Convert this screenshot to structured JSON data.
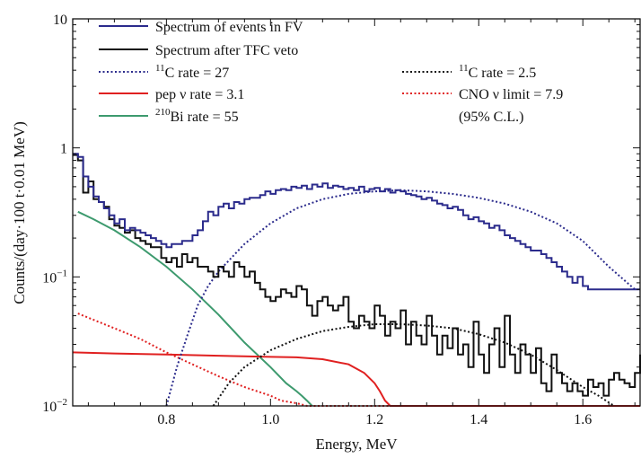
{
  "chart_data": {
    "type": "line",
    "xlabel": "Energy, MeV",
    "ylabel": "Counts/(day·100 t·0.01 MeV)",
    "xlim": [
      0.62,
      1.71
    ],
    "ylim": [
      0.01,
      10
    ],
    "yscale": "log",
    "x_ticks": [
      {
        "value": 0.8,
        "label": "0.8"
      },
      {
        "value": 1.0,
        "label": "1.0"
      },
      {
        "value": 1.2,
        "label": "1.2"
      },
      {
        "value": 1.4,
        "label": "1.4"
      },
      {
        "value": 1.6,
        "label": "1.6"
      }
    ],
    "y_ticks": [
      {
        "value": 10,
        "base": "10",
        "exp": ""
      },
      {
        "value": 1,
        "base": "1",
        "exp": ""
      },
      {
        "value": 0.1,
        "base": "10",
        "exp": "−1"
      },
      {
        "value": 0.01,
        "base": "10",
        "exp": "−2"
      }
    ],
    "legend": [
      {
        "pre": "Spectrum of events in FV",
        "sup": "",
        "post": ""
      },
      {
        "pre": "Spectrum after TFC veto",
        "sup": "",
        "post": ""
      },
      {
        "pre": "",
        "sup": "11",
        "post": "C rate = 27"
      },
      {
        "pre": "pep ν rate = 3.1",
        "sup": "",
        "post": ""
      },
      {
        "pre": "",
        "sup": "210",
        "post": "Bi rate = 55"
      },
      {
        "pre": "",
        "sup": "11",
        "post": "C rate = 2.5"
      },
      {
        "pre": "CNO ν limit = 7.9",
        "sup": "",
        "post": ""
      },
      {
        "pre": "(95% C.L.)",
        "sup": "",
        "post": ""
      }
    ],
    "series": [
      {
        "key": "fv",
        "color": "#2b2b8c",
        "style": "step",
        "bin_start": 0.62,
        "bin_width": 0.01,
        "values": [
          0.9,
          0.85,
          0.6,
          0.5,
          0.42,
          0.38,
          0.34,
          0.3,
          0.26,
          0.28,
          0.23,
          0.24,
          0.23,
          0.22,
          0.21,
          0.2,
          0.19,
          0.18,
          0.17,
          0.18,
          0.18,
          0.19,
          0.19,
          0.21,
          0.23,
          0.27,
          0.32,
          0.3,
          0.35,
          0.37,
          0.34,
          0.38,
          0.37,
          0.4,
          0.41,
          0.41,
          0.43,
          0.46,
          0.44,
          0.47,
          0.48,
          0.47,
          0.5,
          0.49,
          0.51,
          0.48,
          0.52,
          0.5,
          0.53,
          0.49,
          0.51,
          0.5,
          0.48,
          0.49,
          0.47,
          0.5,
          0.46,
          0.48,
          0.49,
          0.46,
          0.48,
          0.45,
          0.47,
          0.46,
          0.44,
          0.43,
          0.42,
          0.4,
          0.41,
          0.39,
          0.37,
          0.36,
          0.34,
          0.35,
          0.33,
          0.3,
          0.28,
          0.29,
          0.27,
          0.26,
          0.24,
          0.25,
          0.23,
          0.21,
          0.2,
          0.19,
          0.18,
          0.17,
          0.16,
          0.16,
          0.15,
          0.14,
          0.13,
          0.12,
          0.11,
          0.1,
          0.09,
          0.1,
          0.085,
          0.08,
          0.08,
          0.08,
          0.08,
          0.08,
          0.08,
          0.08,
          0.08,
          0.08,
          0.08,
          0.08
        ]
      },
      {
        "key": "tfc",
        "color": "#111111",
        "style": "step",
        "bin_start": 0.62,
        "bin_width": 0.01,
        "values": [
          0.88,
          0.8,
          0.45,
          0.55,
          0.4,
          0.38,
          0.35,
          0.28,
          0.25,
          0.24,
          0.22,
          0.23,
          0.2,
          0.19,
          0.18,
          0.17,
          0.17,
          0.14,
          0.13,
          0.14,
          0.12,
          0.15,
          0.13,
          0.14,
          0.12,
          0.12,
          0.11,
          0.1,
          0.12,
          0.11,
          0.1,
          0.13,
          0.12,
          0.1,
          0.11,
          0.09,
          0.08,
          0.07,
          0.065,
          0.07,
          0.08,
          0.075,
          0.07,
          0.085,
          0.08,
          0.06,
          0.05,
          0.065,
          0.07,
          0.06,
          0.055,
          0.06,
          0.07,
          0.045,
          0.04,
          0.05,
          0.045,
          0.04,
          0.06,
          0.05,
          0.035,
          0.045,
          0.04,
          0.055,
          0.03,
          0.045,
          0.035,
          0.03,
          0.05,
          0.035,
          0.025,
          0.035,
          0.028,
          0.04,
          0.025,
          0.03,
          0.02,
          0.045,
          0.025,
          0.018,
          0.03,
          0.04,
          0.02,
          0.05,
          0.025,
          0.018,
          0.03,
          0.025,
          0.018,
          0.028,
          0.015,
          0.013,
          0.025,
          0.018,
          0.015,
          0.013,
          0.015,
          0.013,
          0.012,
          0.016,
          0.014,
          0.015,
          0.012,
          0.016,
          0.018,
          0.016,
          0.015,
          0.014,
          0.018,
          0.025
        ]
      },
      {
        "key": "c11_fv",
        "color": "#2b2b8c",
        "style": "dotted",
        "x": [
          0.8,
          0.82,
          0.84,
          0.86,
          0.88,
          0.9,
          0.95,
          1.0,
          1.05,
          1.1,
          1.15,
          1.2,
          1.25,
          1.3,
          1.35,
          1.4,
          1.45,
          1.5,
          1.55,
          1.6,
          1.65,
          1.7
        ],
        "y": [
          0.01,
          0.02,
          0.035,
          0.06,
          0.085,
          0.11,
          0.18,
          0.26,
          0.34,
          0.4,
          0.44,
          0.46,
          0.47,
          0.46,
          0.44,
          0.41,
          0.37,
          0.32,
          0.26,
          0.19,
          0.12,
          0.08
        ]
      },
      {
        "key": "c11_tfc",
        "color": "#111111",
        "style": "dotted",
        "x": [
          0.89,
          0.92,
          0.95,
          1.0,
          1.05,
          1.1,
          1.15,
          1.2,
          1.25,
          1.3,
          1.35,
          1.4,
          1.45,
          1.5,
          1.55,
          1.6,
          1.63,
          1.66
        ],
        "y": [
          0.01,
          0.015,
          0.02,
          0.027,
          0.033,
          0.038,
          0.041,
          0.043,
          0.043,
          0.042,
          0.04,
          0.036,
          0.031,
          0.025,
          0.019,
          0.014,
          0.012,
          0.01
        ]
      },
      {
        "key": "pep",
        "color": "#e02020",
        "style": "solid",
        "x": [
          0.62,
          0.7,
          0.8,
          0.9,
          1.0,
          1.05,
          1.1,
          1.15,
          1.18,
          1.2,
          1.21,
          1.22,
          1.23,
          1.71
        ],
        "y": [
          0.026,
          0.0255,
          0.025,
          0.0245,
          0.024,
          0.0238,
          0.023,
          0.021,
          0.018,
          0.015,
          0.013,
          0.011,
          0.01,
          0.01
        ]
      },
      {
        "key": "cno",
        "color": "#e02020",
        "style": "dotted",
        "x": [
          0.63,
          0.7,
          0.75,
          0.8,
          0.85,
          0.9,
          0.95,
          1.0,
          1.02,
          1.05,
          1.07,
          1.1,
          1.71
        ],
        "y": [
          0.052,
          0.04,
          0.033,
          0.026,
          0.021,
          0.017,
          0.014,
          0.012,
          0.011,
          0.0105,
          0.01,
          0.01,
          0.01
        ]
      },
      {
        "key": "bi210",
        "color": "#3d9a6e",
        "style": "solid",
        "x": [
          0.63,
          0.66,
          0.7,
          0.75,
          0.8,
          0.85,
          0.9,
          0.95,
          1.0,
          1.03,
          1.05,
          1.06,
          1.07,
          1.08
        ],
        "y": [
          0.32,
          0.28,
          0.23,
          0.17,
          0.12,
          0.08,
          0.051,
          0.031,
          0.02,
          0.015,
          0.013,
          0.012,
          0.011,
          0.01
        ]
      }
    ]
  }
}
